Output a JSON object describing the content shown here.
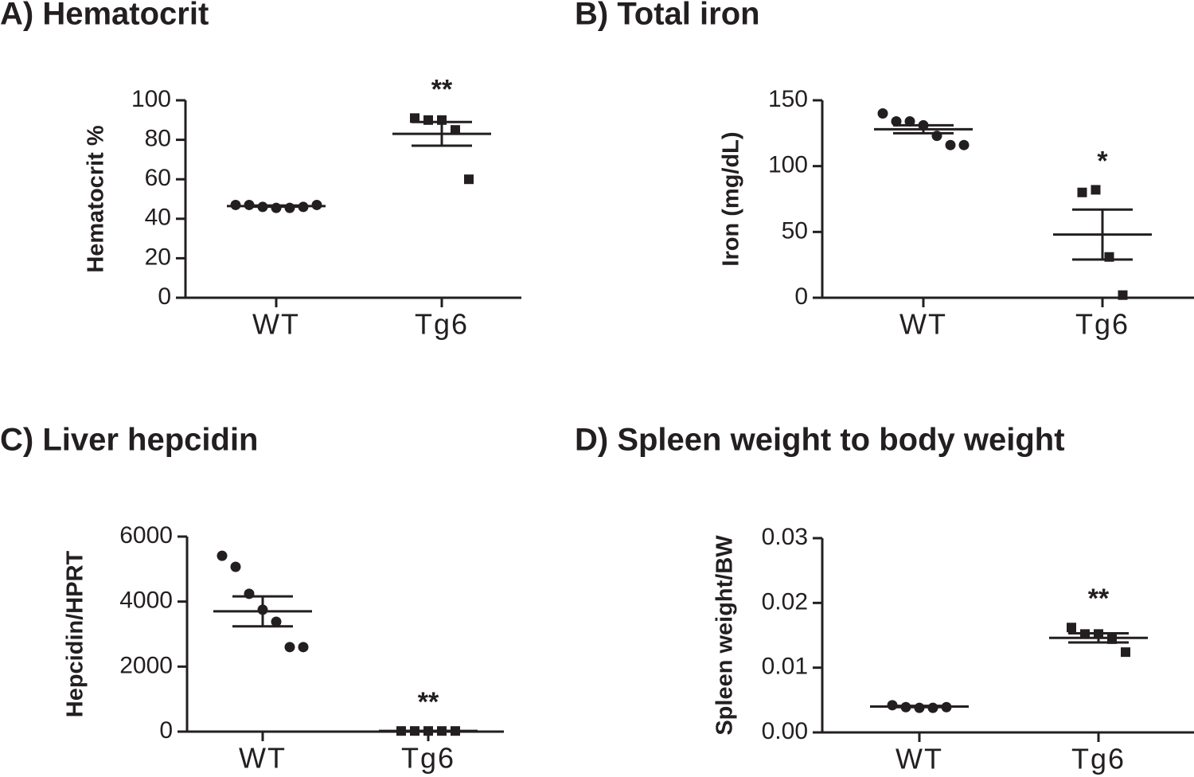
{
  "chart_data": [
    {
      "type": "dotplot",
      "title": "A) Hematocrit",
      "ylabel": "Hematocrit %",
      "categories": [
        "WT",
        "Tg6"
      ],
      "values": [
        [
          47,
          47,
          46,
          45.5,
          45.5,
          46,
          47
        ],
        [
          91,
          90,
          90,
          85,
          60
        ]
      ],
      "means": [
        46.4,
        83
      ],
      "errors": [
        0.3,
        6
      ],
      "annotations": [
        null,
        "**"
      ],
      "markers": [
        "circle",
        "square"
      ],
      "color": "#231f20",
      "ylim": [
        0,
        100
      ],
      "yticks": [
        0,
        20,
        40,
        60,
        80,
        100
      ]
    },
    {
      "type": "dotplot",
      "title": "B) Total iron",
      "ylabel": "Iron (mg/dL)",
      "categories": [
        "WT",
        "Tg6"
      ],
      "values": [
        [
          140,
          134,
          134,
          131,
          123,
          116,
          116
        ],
        [
          80,
          82,
          31,
          2
        ]
      ],
      "means": [
        128,
        48
      ],
      "errors": [
        3,
        19
      ],
      "annotations": [
        null,
        "*"
      ],
      "markers": [
        "circle",
        "square"
      ],
      "color": "#231f20",
      "ylim": [
        0,
        150
      ],
      "yticks": [
        0,
        50,
        100,
        150
      ]
    },
    {
      "type": "dotplot",
      "title": "C) Liver hepcidin",
      "ylabel": "Hepcidin/HPRT",
      "categories": [
        "WT",
        "Tg6"
      ],
      "values": [
        [
          5410,
          5070,
          4240,
          3750,
          3380,
          2600,
          2600
        ],
        [
          20,
          20,
          20,
          20,
          20
        ]
      ],
      "means": [
        3700,
        20
      ],
      "errors": [
        460,
        5
      ],
      "annotations": [
        null,
        "**"
      ],
      "markers": [
        "circle",
        "square"
      ],
      "color": "#231f20",
      "ylim": [
        0,
        6000
      ],
      "yticks": [
        0,
        2000,
        4000,
        6000
      ]
    },
    {
      "type": "dotplot",
      "title": "D) Spleen weight to body weight",
      "ylabel": "Spleen weight/BW",
      "categories": [
        "WT",
        "Tg6"
      ],
      "values": [
        [
          0.0042,
          0.0039,
          0.0038,
          0.0038,
          0.0039
        ],
        [
          0.0162,
          0.0152,
          0.0152,
          0.0144,
          0.0124
        ]
      ],
      "means": [
        0.004,
        0.0146
      ],
      "errors": [
        0.0001,
        0.0007
      ],
      "annotations": [
        null,
        "**"
      ],
      "markers": [
        "circle",
        "square"
      ],
      "color": "#231f20",
      "ylim": [
        0,
        0.03
      ],
      "yticks": [
        {
          "value": 0,
          "label": "0.00"
        },
        {
          "value": 0.01,
          "label": "0.01"
        },
        {
          "value": 0.02,
          "label": "0.02"
        },
        {
          "value": 0.03,
          "label": "0.03"
        }
      ]
    }
  ]
}
